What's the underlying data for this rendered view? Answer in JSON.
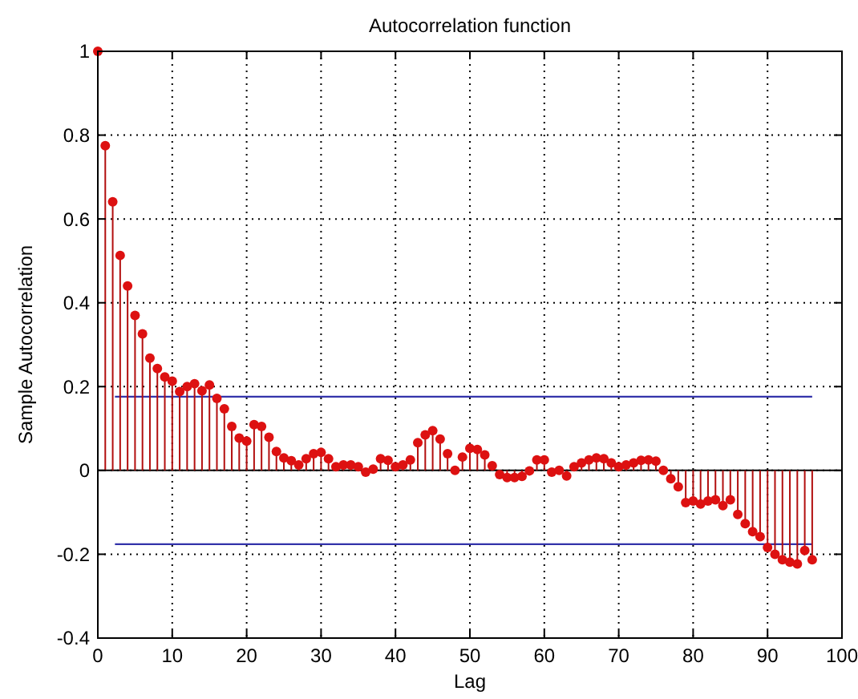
{
  "chart_data": {
    "type": "lollipop",
    "title": "Autocorrelation function",
    "xlabel": "Lag",
    "ylabel": "Sample Autocorrelation",
    "x": [
      0,
      1,
      2,
      3,
      4,
      5,
      6,
      7,
      8,
      9,
      10,
      11,
      12,
      13,
      14,
      15,
      16,
      17,
      18,
      19,
      20,
      21,
      22,
      23,
      24,
      25,
      26,
      27,
      28,
      29,
      30,
      31,
      32,
      33,
      34,
      35,
      36,
      37,
      38,
      39,
      40,
      41,
      42,
      43,
      44,
      45,
      46,
      47,
      48,
      49,
      50,
      51,
      52,
      53,
      54,
      55,
      56,
      57,
      58,
      59,
      60,
      61,
      62,
      63,
      64,
      65,
      66,
      67,
      68,
      69,
      70,
      71,
      72,
      73,
      74,
      75,
      76,
      77,
      78,
      79,
      80,
      81,
      82,
      83,
      84,
      85,
      86,
      87,
      88,
      89,
      90,
      91,
      92,
      93,
      94,
      95,
      96
    ],
    "series": [
      {
        "color": "#dd1111",
        "values": [
          1,
          0.775,
          0.641,
          0.513,
          0.44,
          0.37,
          0.326,
          0.268,
          0.243,
          0.223,
          0.213,
          0.188,
          0.2,
          0.207,
          0.19,
          0.204,
          0.172,
          0.147,
          0.105,
          0.077,
          0.07,
          0.109,
          0.105,
          0.079,
          0.045,
          0.03,
          0.023,
          0.013,
          0.028,
          0.04,
          0.043,
          0.028,
          0.009,
          0.013,
          0.013,
          0.009,
          -0.004,
          0.003,
          0.028,
          0.024,
          0.009,
          0.013,
          0.025,
          0.066,
          0.085,
          0.095,
          0.075,
          0.04,
          0,
          0.032,
          0.053,
          0.05,
          0.037,
          0.011,
          -0.01,
          -0.017,
          -0.017,
          -0.014,
          -0.001,
          0.025,
          0.025,
          -0.004,
          0,
          -0.013,
          0.009,
          0.018,
          0.025,
          0.03,
          0.028,
          0.018,
          0.009,
          0.013,
          0.018,
          0.024,
          0.025,
          0.022,
          0,
          -0.02,
          -0.039,
          -0.077,
          -0.073,
          -0.08,
          -0.073,
          -0.07,
          -0.084,
          -0.07,
          -0.105,
          -0.127,
          -0.146,
          -0.158,
          -0.184,
          -0.2,
          -0.213,
          -0.219,
          -0.223,
          -0.191,
          -0.213
        ]
      }
    ],
    "xlim": [
      0,
      100
    ],
    "xticks": [
      0,
      10,
      20,
      30,
      40,
      50,
      60,
      70,
      80,
      90,
      100
    ],
    "ylim": [
      -0.4,
      1
    ],
    "yticks": [
      -0.4,
      -0.2,
      0,
      0.2,
      0.4,
      0.6,
      0.8,
      1
    ],
    "ref_lines": [
      {
        "axis": "y",
        "value": 0.176,
        "color": "#3333aa"
      },
      {
        "axis": "y",
        "value": -0.176,
        "color": "#3333aa"
      }
    ],
    "grid": true,
    "marker": "circle"
  }
}
